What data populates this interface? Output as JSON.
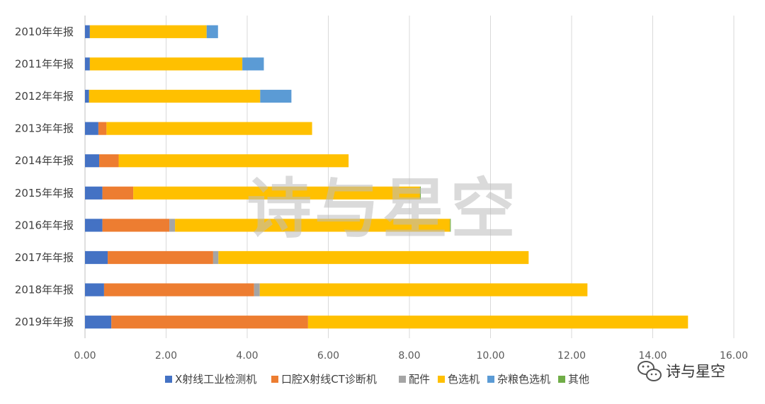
{
  "chart_data": {
    "type": "bar",
    "orientation": "horizontal",
    "stacked": true,
    "categories": [
      "2010年年报",
      "2011年年报",
      "2012年年报",
      "2013年年报",
      "2014年年报",
      "2015年年报",
      "2016年年报",
      "2017年年报",
      "2018年年报",
      "2019年年报"
    ],
    "series": [
      {
        "name": "X射线工业检测机",
        "color": "#4472c4",
        "values": [
          0.12,
          0.12,
          0.1,
          0.33,
          0.35,
          0.43,
          0.43,
          0.56,
          0.47,
          0.65
        ]
      },
      {
        "name": "口腔X射线CT诊断机",
        "color": "#ed7d31",
        "values": [
          0,
          0,
          0,
          0.2,
          0.48,
          0.76,
          1.65,
          2.6,
          3.7,
          4.85
        ]
      },
      {
        "name": "配件",
        "color": "#a5a5a5",
        "values": [
          0,
          0,
          0,
          0,
          0,
          0,
          0.14,
          0.13,
          0.14,
          0
        ]
      },
      {
        "name": "色选机",
        "color": "#ffc000",
        "values": [
          2.88,
          3.76,
          4.22,
          5.07,
          5.67,
          7.07,
          6.78,
          7.65,
          8.08,
          9.37
        ]
      },
      {
        "name": "杂粮色选机",
        "color": "#5b9bd5",
        "values": [
          0.28,
          0.53,
          0.77,
          0,
          0,
          0,
          0,
          0,
          0,
          0
        ]
      },
      {
        "name": "其他",
        "color": "#70ad47",
        "values": [
          0,
          0,
          0,
          0,
          0,
          0.02,
          0.02,
          0,
          0,
          0
        ]
      }
    ],
    "xlim": [
      0,
      16
    ],
    "x_ticks": [
      "0.00",
      "2.00",
      "4.00",
      "6.00",
      "8.00",
      "10.00",
      "12.00",
      "14.00",
      "16.00"
    ],
    "grid": true,
    "legend_position": "bottom"
  },
  "watermark": {
    "text": "诗与星空"
  },
  "wechat_badge": {
    "text": "诗与星空"
  }
}
